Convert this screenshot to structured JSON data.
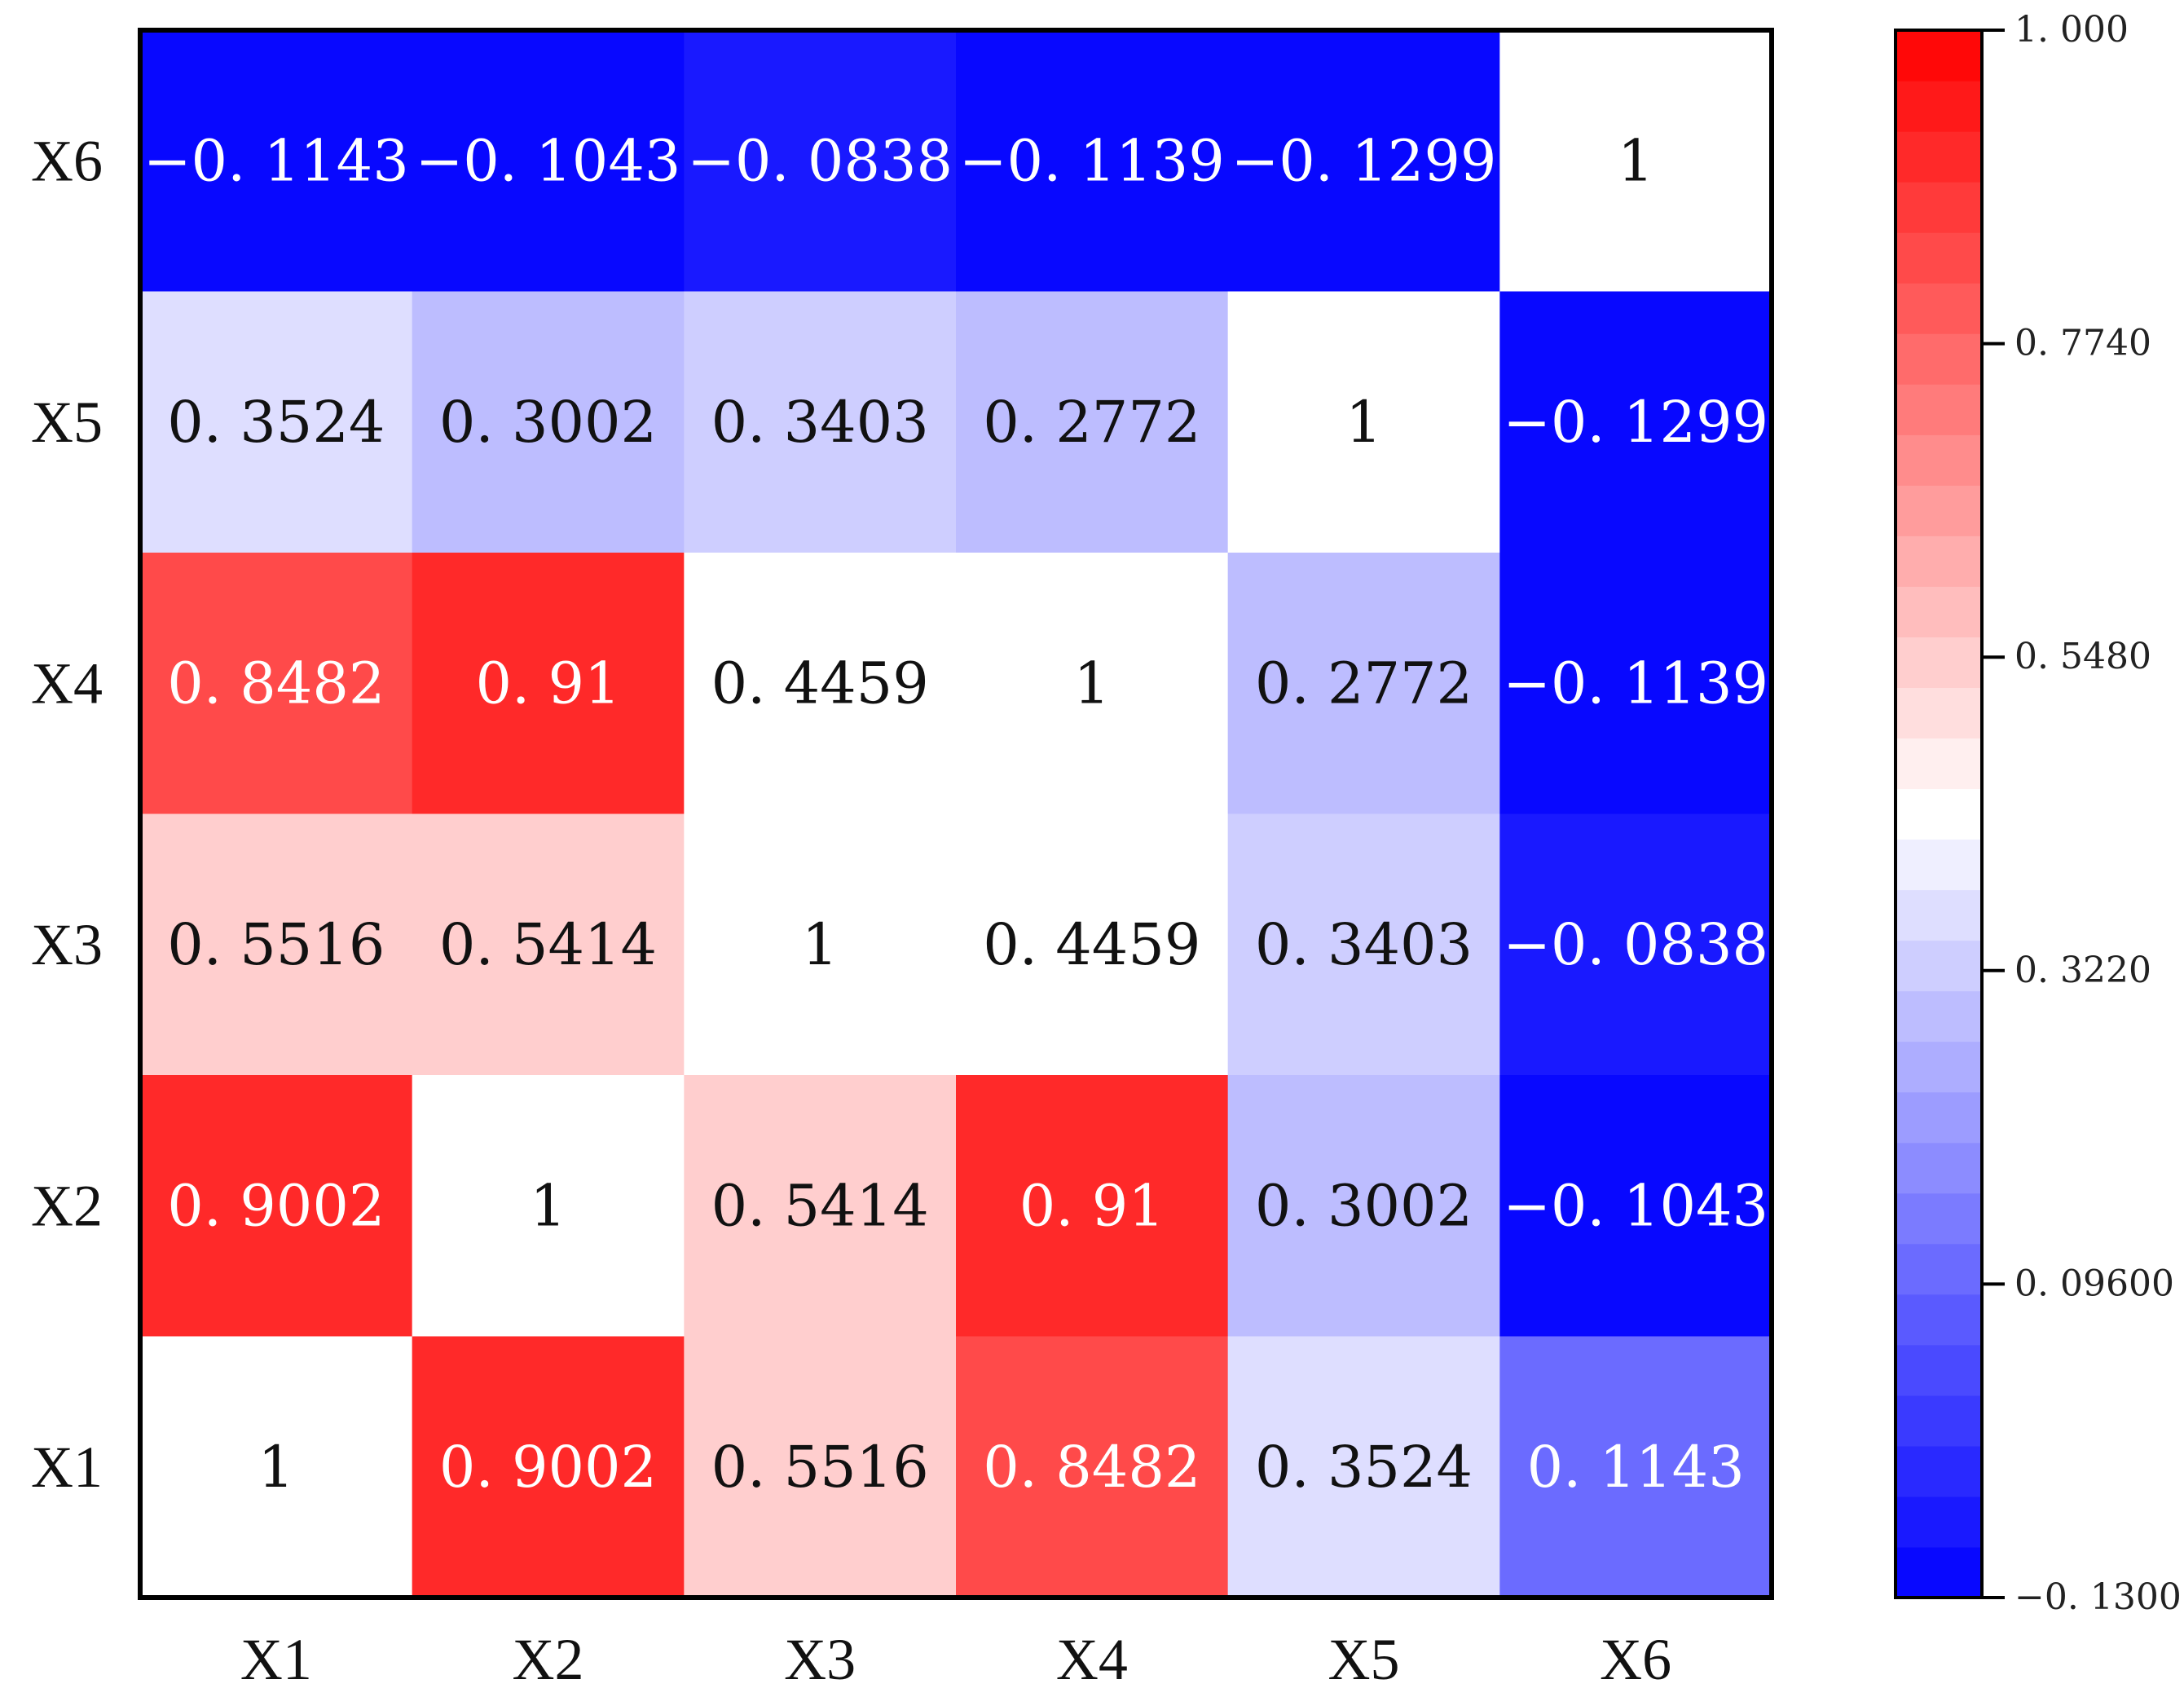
{
  "chart_data": {
    "type": "heatmap",
    "title": "",
    "xlabel": "",
    "ylabel": "",
    "x_categories": [
      "X1",
      "X2",
      "X3",
      "X4",
      "X5",
      "X6"
    ],
    "y_categories": [
      "X6",
      "X5",
      "X4",
      "X3",
      "X2",
      "X1"
    ],
    "rows": [
      {
        "label": "X6",
        "cells": [
          {
            "value": -0.1143,
            "text": "−0. 1143"
          },
          {
            "value": -0.1043,
            "text": "−0. 1043"
          },
          {
            "value": -0.0838,
            "text": "−0. 0838"
          },
          {
            "value": -0.1139,
            "text": "−0. 1139"
          },
          {
            "value": -0.1299,
            "text": "−0. 1299"
          },
          {
            "value": 1,
            "text": "1"
          }
        ]
      },
      {
        "label": "X5",
        "cells": [
          {
            "value": 0.3524,
            "text": "0. 3524"
          },
          {
            "value": 0.3002,
            "text": "0. 3002"
          },
          {
            "value": 0.3403,
            "text": "0. 3403"
          },
          {
            "value": 0.2772,
            "text": "0. 2772"
          },
          {
            "value": 1,
            "text": "1"
          },
          {
            "value": -0.1299,
            "text": "−0. 1299"
          }
        ]
      },
      {
        "label": "X4",
        "cells": [
          {
            "value": 0.8482,
            "text": "0. 8482"
          },
          {
            "value": 0.91,
            "text": "0. 91"
          },
          {
            "value": 0.4459,
            "text": "0. 4459"
          },
          {
            "value": 1,
            "text": "1"
          },
          {
            "value": 0.2772,
            "text": "0. 2772"
          },
          {
            "value": -0.1139,
            "text": "−0. 1139"
          }
        ]
      },
      {
        "label": "X3",
        "cells": [
          {
            "value": 0.5516,
            "text": "0. 5516"
          },
          {
            "value": 0.5414,
            "text": "0. 5414"
          },
          {
            "value": 1,
            "text": "1"
          },
          {
            "value": 0.4459,
            "text": "0. 4459"
          },
          {
            "value": 0.3403,
            "text": "0. 3403"
          },
          {
            "value": -0.0838,
            "text": "−0. 0838"
          }
        ]
      },
      {
        "label": "X2",
        "cells": [
          {
            "value": 0.9002,
            "text": "0. 9002"
          },
          {
            "value": 1,
            "text": "1"
          },
          {
            "value": 0.5414,
            "text": "0. 5414"
          },
          {
            "value": 0.91,
            "text": "0. 91"
          },
          {
            "value": 0.3002,
            "text": "0. 3002"
          },
          {
            "value": -0.1043,
            "text": "−0. 1043"
          }
        ]
      },
      {
        "label": "X1",
        "cells": [
          {
            "value": 1,
            "text": "1"
          },
          {
            "value": 0.9002,
            "text": "0. 9002"
          },
          {
            "value": 0.5516,
            "text": "0. 5516"
          },
          {
            "value": 0.8482,
            "text": "0. 8482"
          },
          {
            "value": 0.3524,
            "text": "0. 3524"
          },
          {
            "value": 0.1143,
            "text": "0. 1143"
          }
        ]
      }
    ],
    "colorbar": {
      "min": -0.13,
      "max": 1.0,
      "steps": 31,
      "ticks": [
        {
          "value": 1.0,
          "label": "1. 000"
        },
        {
          "value": 0.774,
          "label": "0. 7740"
        },
        {
          "value": 0.548,
          "label": "0. 5480"
        },
        {
          "value": 0.322,
          "label": "0. 3220"
        },
        {
          "value": 0.096,
          "label": "0. 09600"
        },
        {
          "value": -0.13,
          "label": "−0. 1300"
        }
      ],
      "colors": {
        "low": "#0000ff",
        "mid": "#ffffff",
        "high": "#ff0000"
      },
      "mid_value": 0.435
    },
    "label_color_light": "#ffffff",
    "label_color_dark": "#111111",
    "white_cell_color": "#ffffff"
  }
}
